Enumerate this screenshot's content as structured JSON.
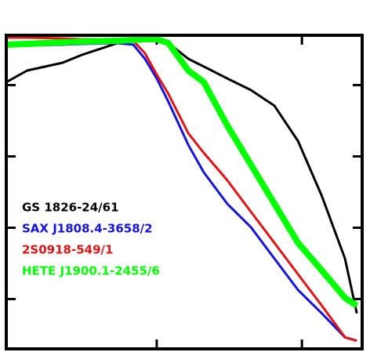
{
  "chart_data": {
    "type": "line",
    "xscale": "log",
    "yscale": "log",
    "xlim": [
      0.092,
      26
    ],
    "ylim": [
      0.0002,
      5
    ],
    "xticks": [
      1,
      10
    ],
    "yticks": [
      0.001,
      0.01,
      0.1,
      1
    ],
    "x": [
      0.092,
      0.128,
      0.225,
      0.306,
      0.537,
      0.689,
      0.83,
      1,
      1.205,
      1.65,
      2.11,
      3.06,
      4.45,
      6.47,
      9.4,
      13.7,
      19.8,
      23.9
    ],
    "series": [
      {
        "name": "GS 1826-24/61",
        "color": "#000000",
        "width": 3,
        "values": [
          1.1,
          1.6,
          2.06,
          2.66,
          3.88,
          4.19,
          4.41,
          4.41,
          3.88,
          2.34,
          1.82,
          1.24,
          0.851,
          0.513,
          0.164,
          0.0279,
          0.00369,
          0.00063
        ]
      },
      {
        "name": "SAX J1808.4-3658/2",
        "color": "#1414dc",
        "width": 3,
        "values": [
          3.6,
          3.6,
          3.69,
          3.78,
          3.88,
          3.69,
          2.34,
          1.24,
          0.582,
          0.145,
          0.0597,
          0.0217,
          0.0102,
          0.00369,
          0.00134,
          0.00063,
          0.00029,
          0.00026
        ]
      },
      {
        "name": "2S0918-549/1",
        "color": "#e01414",
        "width": 3,
        "values": [
          4.64,
          4.64,
          4.52,
          4.41,
          4.41,
          4.19,
          2.79,
          1.41,
          0.75,
          0.211,
          0.112,
          0.0463,
          0.0168,
          0.00613,
          0.00222,
          0.00081,
          0.00029,
          0.00026
        ]
      },
      {
        "name": "HETE J1900.1-2455/6",
        "color": "#00ff00",
        "width": 8,
        "values": [
          3.69,
          3.78,
          3.98,
          4.08,
          4.19,
          4.29,
          4.41,
          4.41,
          3.88,
          1.6,
          1.1,
          0.272,
          0.0769,
          0.0217,
          0.00613,
          0.00252,
          0.00104,
          0.00081
        ]
      }
    ],
    "legend": "left"
  }
}
